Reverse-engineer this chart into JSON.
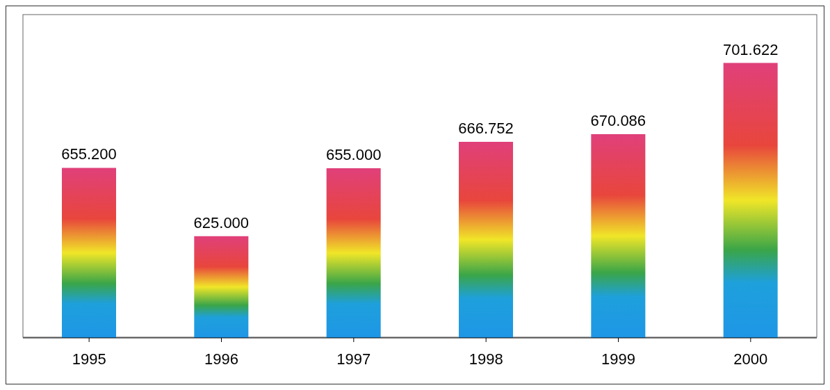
{
  "chart_data": {
    "type": "bar",
    "categories": [
      "1995",
      "1996",
      "1997",
      "1998",
      "1999",
      "2000"
    ],
    "values": [
      655.2,
      625.0,
      655.0,
      666.752,
      670.086,
      701.622
    ],
    "value_labels": [
      "655.200",
      "625.000",
      "655.000",
      "666.752",
      "670.086",
      "701.622"
    ],
    "color": "#e0407a",
    "ylim": [
      580,
      723
    ]
  }
}
